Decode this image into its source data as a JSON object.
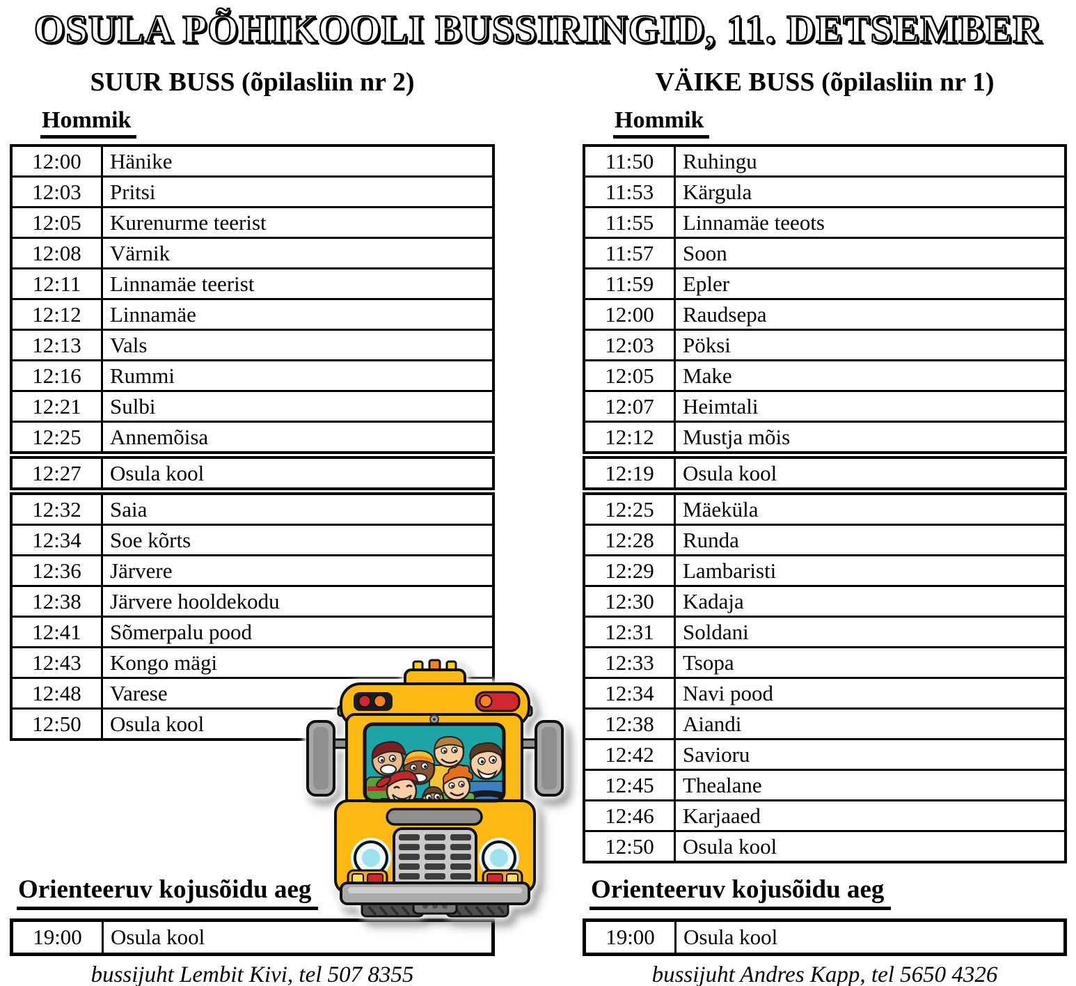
{
  "title": "OSULA PÕHIKOOLI BUSSIRINGID, 11. DETSEMBER",
  "columns": [
    {
      "title": "SUUR BUSS (õpilasliin nr 2)",
      "morning_label": "Hommik",
      "segments": [
        {
          "rows": [
            {
              "time": "12:00",
              "stop": "Hänike"
            },
            {
              "time": "12:03",
              "stop": "Pritsi"
            },
            {
              "time": "12:05",
              "stop": "Kurenurme teerist"
            },
            {
              "time": "12:08",
              "stop": "Värnik"
            },
            {
              "time": "12:11",
              "stop": "Linnamäe teerist"
            },
            {
              "time": "12:12",
              "stop": "Linnamäe"
            },
            {
              "time": "12:13",
              "stop": "Vals"
            },
            {
              "time": "12:16",
              "stop": "Rummi"
            },
            {
              "time": "12:21",
              "stop": "Sulbi"
            },
            {
              "time": "12:25",
              "stop": "Annemõisa"
            }
          ]
        },
        {
          "rows": [
            {
              "time": "12:27",
              "stop": "Osula kool"
            }
          ]
        },
        {
          "rows": [
            {
              "time": "12:32",
              "stop": "Saia"
            },
            {
              "time": "12:34",
              "stop": "Soe kõrts"
            },
            {
              "time": "12:36",
              "stop": "Järvere"
            },
            {
              "time": "12:38",
              "stop": "Järvere hooldekodu"
            },
            {
              "time": "12:41",
              "stop": "Sõmerpalu pood"
            },
            {
              "time": "12:43",
              "stop": "Kongo mägi"
            },
            {
              "time": "12:48",
              "stop": "Varese"
            },
            {
              "time": "12:50",
              "stop": "Osula kool"
            }
          ]
        }
      ],
      "evening_label": "Orienteeruv kojusõidu aeg",
      "evening_rows": [
        {
          "time": "19:00",
          "stop": "Osula kool"
        }
      ],
      "driver_note": "bussijuht Lembit Kivi, tel 507 8355"
    },
    {
      "title": "VÄIKE BUSS (õpilasliin nr 1)",
      "morning_label": "Hommik",
      "segments": [
        {
          "rows": [
            {
              "time": "11:50",
              "stop": "Ruhingu"
            },
            {
              "time": "11:53",
              "stop": "Kärgula"
            },
            {
              "time": "11:55",
              "stop": "Linnamäe teeots"
            },
            {
              "time": "11:57",
              "stop": "Soon"
            },
            {
              "time": "11:59",
              "stop": "Epler"
            },
            {
              "time": "12:00",
              "stop": "Raudsepa"
            },
            {
              "time": "12:03",
              "stop": "Pöksi"
            },
            {
              "time": "12:05",
              "stop": "Make"
            },
            {
              "time": "12:07",
              "stop": "Heimtali"
            },
            {
              "time": "12:12",
              "stop": "Mustja mõis"
            }
          ]
        },
        {
          "rows": [
            {
              "time": "12:19",
              "stop": "Osula kool"
            }
          ]
        },
        {
          "rows": [
            {
              "time": "12:25",
              "stop": "Mäeküla"
            },
            {
              "time": "12:28",
              "stop": "Runda"
            },
            {
              "time": "12:29",
              "stop": "Lambaristi"
            },
            {
              "time": "12:30",
              "stop": "Kadaja"
            },
            {
              "time": "12:31",
              "stop": "Soldani"
            },
            {
              "time": "12:33",
              "stop": "Tsopa"
            },
            {
              "time": "12:34",
              "stop": "Navi pood"
            },
            {
              "time": "12:38",
              "stop": "Aiandi"
            },
            {
              "time": "12:42",
              "stop": "Savioru"
            },
            {
              "time": "12:45",
              "stop": "Thealane"
            },
            {
              "time": "12:46",
              "stop": "Karjaaed"
            },
            {
              "time": "12:50",
              "stop": "Osula kool"
            }
          ]
        }
      ],
      "evening_label": "Orienteeruv kojusõidu aeg",
      "evening_rows": [
        {
          "time": "19:00",
          "stop": "Osula kool"
        }
      ],
      "driver_note": "bussijuht Andres Kapp, tel 5650 4326"
    }
  ],
  "illustration": {
    "name": "school-bus-with-children",
    "bus_body_color": "#FDB913",
    "windshield_color": "#1FA4A6",
    "outline_color": "#111111"
  }
}
